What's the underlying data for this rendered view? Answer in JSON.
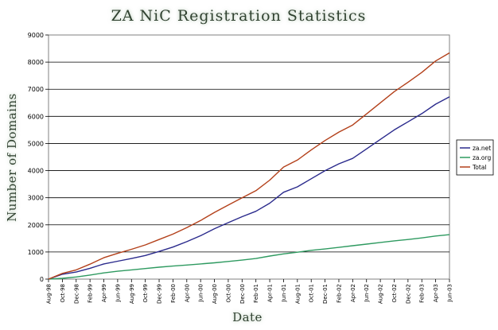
{
  "chart_data": {
    "type": "line",
    "title": "ZA NiC Registration Statistics",
    "xlabel": "Date",
    "ylabel": "Number of Domains",
    "ylim": [
      0,
      9000
    ],
    "yticks": [
      0,
      1000,
      2000,
      3000,
      4000,
      5000,
      6000,
      7000,
      8000,
      9000
    ],
    "grid": true,
    "legend_position": "right",
    "x": [
      "Aug-98",
      "Oct-98",
      "Dec-98",
      "Feb-99",
      "Apr-99",
      "Jun-99",
      "Aug-99",
      "Oct-99",
      "Dec-99",
      "Feb-00",
      "Apr-00",
      "Jun-00",
      "Aug-00",
      "Oct-00",
      "Dec-00",
      "Feb-01",
      "Apr-01",
      "Jun-01",
      "Aug-01",
      "Oct-01",
      "Dec-01",
      "Feb-02",
      "Apr-02",
      "Jun-02",
      "Aug-02",
      "Oct-02",
      "Dec-02",
      "Feb-03",
      "Apr-03",
      "Jun-03"
    ],
    "series": [
      {
        "name": "za.net",
        "color": "#2a2a8c",
        "values": [
          0,
          180,
          260,
          400,
          560,
          660,
          760,
          870,
          1020,
          1180,
          1380,
          1600,
          1860,
          2080,
          2300,
          2500,
          2800,
          3200,
          3400,
          3700,
          4000,
          4250,
          4450,
          4800,
          5150,
          5500,
          5800,
          6100,
          6450,
          6720
        ]
      },
      {
        "name": "za.org",
        "color": "#2e9a60",
        "values": [
          0,
          30,
          80,
          150,
          230,
          290,
          340,
          390,
          440,
          480,
          520,
          560,
          600,
          650,
          700,
          760,
          850,
          930,
          990,
          1060,
          1110,
          1170,
          1230,
          1290,
          1350,
          1410,
          1460,
          1520,
          1590,
          1640
        ]
      },
      {
        "name": "Total",
        "color": "#b3401a",
        "values": [
          0,
          210,
          340,
          550,
          790,
          950,
          1100,
          1260,
          1460,
          1660,
          1900,
          2160,
          2460,
          2730,
          3000,
          3260,
          3650,
          4130,
          4390,
          4760,
          5110,
          5420,
          5680,
          6090,
          6500,
          6910,
          7260,
          7620,
          8040,
          8340
        ]
      }
    ]
  }
}
